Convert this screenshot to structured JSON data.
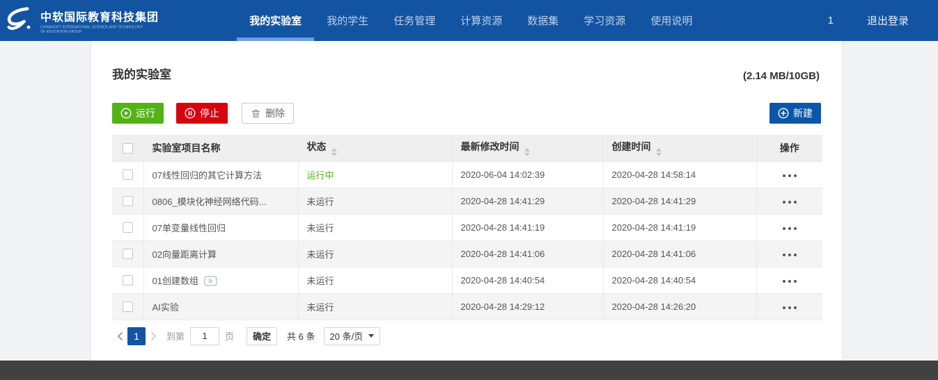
{
  "nav": {
    "brand": {
      "name": "中软国际教育科技集团",
      "subtitle_line1": "CHINASOFT INTERNATIONAL SCIENCE AND TECHNOLOGY",
      "subtitle_line2": "OF EDUCATION GROUP"
    },
    "items": [
      {
        "name": "my-lab",
        "label": "我的实验室",
        "active": true
      },
      {
        "name": "my-students",
        "label": "我的学生",
        "active": false
      },
      {
        "name": "task-manage",
        "label": "任务管理",
        "active": false
      },
      {
        "name": "compute-res",
        "label": "计算资源",
        "active": false
      },
      {
        "name": "datasets",
        "label": "数据集",
        "active": false
      },
      {
        "name": "learning-res",
        "label": "学习资源",
        "active": false
      },
      {
        "name": "user-guide",
        "label": "使用说明",
        "active": false
      }
    ],
    "badge_count": "1",
    "logout_label": "退出登录"
  },
  "page": {
    "title": "我的实验室",
    "storage": "(2.14 MB/10GB)"
  },
  "toolbar": {
    "run_label": "运行",
    "stop_label": "停止",
    "delete_label": "删除",
    "new_label": "新建"
  },
  "table": {
    "columns": [
      {
        "label": "实验室项目名称",
        "sortable": false
      },
      {
        "label": "状态",
        "sortable": true
      },
      {
        "label": "最新修改时间",
        "sortable": true
      },
      {
        "label": "创建时间",
        "sortable": true
      },
      {
        "label": "操作",
        "sortable": false
      }
    ],
    "rows": [
      {
        "name": "07线性回归的其它计算方法",
        "status": "运行中",
        "running": true,
        "modified": "2020-06-04 14:02:39",
        "created": "2020-04-28 14:58:14",
        "video": false
      },
      {
        "name": "0806_模块化神经网络代码...",
        "status": "未运行",
        "running": false,
        "modified": "2020-04-28 14:41:29",
        "created": "2020-04-28 14:41:29",
        "video": false
      },
      {
        "name": "07单变量线性回归",
        "status": "未运行",
        "running": false,
        "modified": "2020-04-28 14:41:19",
        "created": "2020-04-28 14:41:19",
        "video": false
      },
      {
        "name": "02向量距离计算",
        "status": "未运行",
        "running": false,
        "modified": "2020-04-28 14:41:06",
        "created": "2020-04-28 14:41:06",
        "video": false
      },
      {
        "name": "01创建数组",
        "status": "未运行",
        "running": false,
        "modified": "2020-04-28 14:40:54",
        "created": "2020-04-28 14:40:54",
        "video": true
      },
      {
        "name": "AI实验",
        "status": "未运行",
        "running": false,
        "modified": "2020-04-28 14:29:12",
        "created": "2020-04-28 14:26:20",
        "video": false
      }
    ]
  },
  "pagination": {
    "current_page": "1",
    "goto_prefix": "到第",
    "goto_value": "1",
    "goto_suffix": "页",
    "confirm_label": "确定",
    "total_label": "共 6 条",
    "page_size_label": "20 条/页"
  },
  "colors": {
    "nav_bg": "#1254a2",
    "active_tab_underline": "#6e9edf",
    "run_green": "#53b217",
    "stop_red": "#d7010f",
    "new_blue": "#0c56a8",
    "footer_gray": "#414141"
  }
}
